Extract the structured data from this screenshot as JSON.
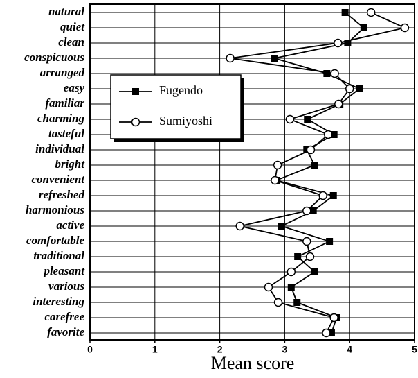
{
  "chart_data": {
    "type": "line",
    "orientation": "horizontal",
    "categories": [
      "natural",
      "quiet",
      "clean",
      "conspicuous",
      "arranged",
      "easy",
      "familiar",
      "charming",
      "tasteful",
      "individual",
      "bright",
      "convenient",
      "refreshed",
      "harmonious",
      "active",
      "comfortable",
      "traditional",
      "pleasant",
      "various",
      "interesting",
      "carefree",
      "favorite"
    ],
    "series": [
      {
        "name": "Fugendo",
        "color": "#000000",
        "marker": "square",
        "values": [
          3.93,
          4.22,
          3.97,
          2.84,
          3.65,
          4.15,
          3.85,
          3.35,
          3.76,
          3.34,
          3.46,
          2.87,
          3.75,
          3.44,
          2.95,
          3.69,
          3.2,
          3.46,
          3.1,
          3.19,
          3.8,
          3.72
        ]
      },
      {
        "name": "Sumiyoshi",
        "color": "#000000",
        "marker": "circle",
        "values": [
          4.33,
          4.85,
          3.82,
          2.16,
          3.77,
          4.0,
          3.83,
          3.08,
          3.67,
          3.4,
          2.89,
          2.85,
          3.59,
          3.34,
          2.31,
          3.34,
          3.39,
          3.1,
          2.75,
          2.9,
          3.76,
          3.64
        ]
      }
    ],
    "x_label": "Mean score",
    "xlim": [
      0,
      5
    ],
    "xticks": [
      0,
      1,
      2,
      3,
      4,
      5
    ],
    "grid": true,
    "legend": "upper left"
  }
}
